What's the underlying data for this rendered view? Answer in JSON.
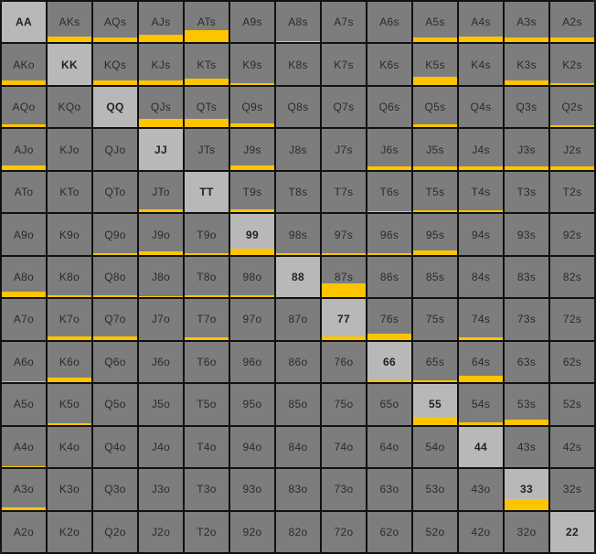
{
  "range_grid": {
    "ranks": [
      "A",
      "K",
      "Q",
      "J",
      "T",
      "9",
      "8",
      "7",
      "6",
      "5",
      "4",
      "3",
      "2"
    ],
    "rows": [
      [
        {
          "hand": "AA",
          "freq": 0
        },
        {
          "hand": "AKs",
          "freq": 0.15
        },
        {
          "hand": "AQs",
          "freq": 0.12
        },
        {
          "hand": "AJs",
          "freq": 0.2
        },
        {
          "hand": "ATs",
          "freq": 0.3
        },
        {
          "hand": "A9s",
          "freq": 0
        },
        {
          "hand": "A8s",
          "freq": 0.03
        },
        {
          "hand": "A7s",
          "freq": 0
        },
        {
          "hand": "A6s",
          "freq": 0
        },
        {
          "hand": "A5s",
          "freq": 0.12
        },
        {
          "hand": "A4s",
          "freq": 0.15
        },
        {
          "hand": "A3s",
          "freq": 0.12
        },
        {
          "hand": "A2s",
          "freq": 0.12
        }
      ],
      [
        {
          "hand": "AKo",
          "freq": 0.12
        },
        {
          "hand": "KK",
          "freq": 0
        },
        {
          "hand": "KQs",
          "freq": 0.12
        },
        {
          "hand": "KJs",
          "freq": 0.12
        },
        {
          "hand": "KTs",
          "freq": 0.15
        },
        {
          "hand": "K9s",
          "freq": 0.05
        },
        {
          "hand": "K8s",
          "freq": 0
        },
        {
          "hand": "K7s",
          "freq": 0
        },
        {
          "hand": "K6s",
          "freq": 0
        },
        {
          "hand": "K5s",
          "freq": 0.2
        },
        {
          "hand": "K4s",
          "freq": 0
        },
        {
          "hand": "K3s",
          "freq": 0.1
        },
        {
          "hand": "K2s",
          "freq": 0.05
        }
      ],
      [
        {
          "hand": "AQo",
          "freq": 0.08
        },
        {
          "hand": "KQo",
          "freq": 0
        },
        {
          "hand": "QQ",
          "freq": 0
        },
        {
          "hand": "QJs",
          "freq": 0.2
        },
        {
          "hand": "QTs",
          "freq": 0.2
        },
        {
          "hand": "Q9s",
          "freq": 0.1
        },
        {
          "hand": "Q8s",
          "freq": 0
        },
        {
          "hand": "Q7s",
          "freq": 0
        },
        {
          "hand": "Q6s",
          "freq": 0
        },
        {
          "hand": "Q5s",
          "freq": 0.08
        },
        {
          "hand": "Q4s",
          "freq": 0
        },
        {
          "hand": "Q3s",
          "freq": 0
        },
        {
          "hand": "Q2s",
          "freq": 0.05
        }
      ],
      [
        {
          "hand": "AJo",
          "freq": 0.12
        },
        {
          "hand": "KJo",
          "freq": 0
        },
        {
          "hand": "QJo",
          "freq": 0
        },
        {
          "hand": "JJ",
          "freq": 0
        },
        {
          "hand": "JTs",
          "freq": 0
        },
        {
          "hand": "J9s",
          "freq": 0.1
        },
        {
          "hand": "J8s",
          "freq": 0
        },
        {
          "hand": "J7s",
          "freq": 0
        },
        {
          "hand": "J6s",
          "freq": 0.08
        },
        {
          "hand": "J5s",
          "freq": 0.08
        },
        {
          "hand": "J4s",
          "freq": 0.08
        },
        {
          "hand": "J3s",
          "freq": 0.08
        },
        {
          "hand": "J2s",
          "freq": 0.08
        }
      ],
      [
        {
          "hand": "ATo",
          "freq": 0
        },
        {
          "hand": "KTo",
          "freq": 0
        },
        {
          "hand": "QTo",
          "freq": 0
        },
        {
          "hand": "JTo",
          "freq": 0.08
        },
        {
          "hand": "TT",
          "freq": 0
        },
        {
          "hand": "T9s",
          "freq": 0.08
        },
        {
          "hand": "T8s",
          "freq": 0
        },
        {
          "hand": "T7s",
          "freq": 0
        },
        {
          "hand": "T6s",
          "freq": 0.04
        },
        {
          "hand": "T5s",
          "freq": 0.05
        },
        {
          "hand": "T4s",
          "freq": 0.05
        },
        {
          "hand": "T3s",
          "freq": 0
        },
        {
          "hand": "T2s",
          "freq": 0
        }
      ],
      [
        {
          "hand": "A9o",
          "freq": 0
        },
        {
          "hand": "K9o",
          "freq": 0
        },
        {
          "hand": "Q9o",
          "freq": 0.05
        },
        {
          "hand": "J9o",
          "freq": 0.08
        },
        {
          "hand": "T9o",
          "freq": 0.05
        },
        {
          "hand": "99",
          "freq": 0.15
        },
        {
          "hand": "98s",
          "freq": 0.03
        },
        {
          "hand": "97s",
          "freq": 0.05
        },
        {
          "hand": "96s",
          "freq": 0.05
        },
        {
          "hand": "95s",
          "freq": 0.1
        },
        {
          "hand": "94s",
          "freq": 0
        },
        {
          "hand": "93s",
          "freq": 0
        },
        {
          "hand": "92s",
          "freq": 0
        }
      ],
      [
        {
          "hand": "A8o",
          "freq": 0.15
        },
        {
          "hand": "K8o",
          "freq": 0.05
        },
        {
          "hand": "Q8o",
          "freq": 0.05
        },
        {
          "hand": "J8o",
          "freq": 0.03
        },
        {
          "hand": "T8o",
          "freq": 0.05
        },
        {
          "hand": "98o",
          "freq": 0.05
        },
        {
          "hand": "88",
          "freq": 0
        },
        {
          "hand": "87s",
          "freq": 0.35
        },
        {
          "hand": "86s",
          "freq": 0
        },
        {
          "hand": "85s",
          "freq": 0
        },
        {
          "hand": "84s",
          "freq": 0
        },
        {
          "hand": "83s",
          "freq": 0
        },
        {
          "hand": "82s",
          "freq": 0
        }
      ],
      [
        {
          "hand": "A7o",
          "freq": 0
        },
        {
          "hand": "K7o",
          "freq": 0.08
        },
        {
          "hand": "Q7o",
          "freq": 0.08
        },
        {
          "hand": "J7o",
          "freq": 0
        },
        {
          "hand": "T7o",
          "freq": 0.05
        },
        {
          "hand": "97o",
          "freq": 0
        },
        {
          "hand": "87o",
          "freq": 0
        },
        {
          "hand": "77",
          "freq": 0.08
        },
        {
          "hand": "76s",
          "freq": 0.15
        },
        {
          "hand": "75s",
          "freq": 0
        },
        {
          "hand": "74s",
          "freq": 0.05
        },
        {
          "hand": "73s",
          "freq": 0
        },
        {
          "hand": "72s",
          "freq": 0
        }
      ],
      [
        {
          "hand": "A6o",
          "freq": 0.03
        },
        {
          "hand": "K6o",
          "freq": 0.12
        },
        {
          "hand": "Q6o",
          "freq": 0
        },
        {
          "hand": "J6o",
          "freq": 0
        },
        {
          "hand": "T6o",
          "freq": 0
        },
        {
          "hand": "96o",
          "freq": 0
        },
        {
          "hand": "86o",
          "freq": 0
        },
        {
          "hand": "76o",
          "freq": 0
        },
        {
          "hand": "66",
          "freq": 0.05
        },
        {
          "hand": "65s",
          "freq": 0.05
        },
        {
          "hand": "64s",
          "freq": 0.15
        },
        {
          "hand": "63s",
          "freq": 0
        },
        {
          "hand": "62s",
          "freq": 0
        }
      ],
      [
        {
          "hand": "A5o",
          "freq": 0
        },
        {
          "hand": "K5o",
          "freq": 0.03
        },
        {
          "hand": "Q5o",
          "freq": 0
        },
        {
          "hand": "J5o",
          "freq": 0
        },
        {
          "hand": "T5o",
          "freq": 0
        },
        {
          "hand": "95o",
          "freq": 0
        },
        {
          "hand": "85o",
          "freq": 0
        },
        {
          "hand": "75o",
          "freq": 0
        },
        {
          "hand": "65o",
          "freq": 0
        },
        {
          "hand": "55",
          "freq": 0.2
        },
        {
          "hand": "54s",
          "freq": 0.05
        },
        {
          "hand": "53s",
          "freq": 0.12
        },
        {
          "hand": "52s",
          "freq": 0
        }
      ],
      [
        {
          "hand": "A4o",
          "freq": 0.03
        },
        {
          "hand": "K4o",
          "freq": 0
        },
        {
          "hand": "Q4o",
          "freq": 0
        },
        {
          "hand": "J4o",
          "freq": 0
        },
        {
          "hand": "T4o",
          "freq": 0
        },
        {
          "hand": "94o",
          "freq": 0
        },
        {
          "hand": "84o",
          "freq": 0
        },
        {
          "hand": "74o",
          "freq": 0
        },
        {
          "hand": "64o",
          "freq": 0
        },
        {
          "hand": "54o",
          "freq": 0
        },
        {
          "hand": "44",
          "freq": 0
        },
        {
          "hand": "43s",
          "freq": 0
        },
        {
          "hand": "42s",
          "freq": 0
        }
      ],
      [
        {
          "hand": "A3o",
          "freq": 0.05
        },
        {
          "hand": "K3o",
          "freq": 0
        },
        {
          "hand": "Q3o",
          "freq": 0
        },
        {
          "hand": "J3o",
          "freq": 0
        },
        {
          "hand": "T3o",
          "freq": 0
        },
        {
          "hand": "93o",
          "freq": 0
        },
        {
          "hand": "83o",
          "freq": 0
        },
        {
          "hand": "73o",
          "freq": 0
        },
        {
          "hand": "63o",
          "freq": 0
        },
        {
          "hand": "53o",
          "freq": 0
        },
        {
          "hand": "43o",
          "freq": 0
        },
        {
          "hand": "33",
          "freq": 0.25
        },
        {
          "hand": "32s",
          "freq": 0
        }
      ],
      [
        {
          "hand": "A2o",
          "freq": 0
        },
        {
          "hand": "K2o",
          "freq": 0
        },
        {
          "hand": "Q2o",
          "freq": 0
        },
        {
          "hand": "J2o",
          "freq": 0
        },
        {
          "hand": "T2o",
          "freq": 0
        },
        {
          "hand": "92o",
          "freq": 0
        },
        {
          "hand": "82o",
          "freq": 0
        },
        {
          "hand": "72o",
          "freq": 0
        },
        {
          "hand": "62o",
          "freq": 0
        },
        {
          "hand": "52o",
          "freq": 0
        },
        {
          "hand": "42o",
          "freq": 0
        },
        {
          "hand": "32o",
          "freq": 0
        },
        {
          "hand": "22",
          "freq": 0
        }
      ]
    ]
  },
  "colors": {
    "cell_bg": "#7d7d7d",
    "pair_bg": "#b8b8b8",
    "highlight_bar": "#ffc400",
    "grid_lines": "#111111"
  }
}
